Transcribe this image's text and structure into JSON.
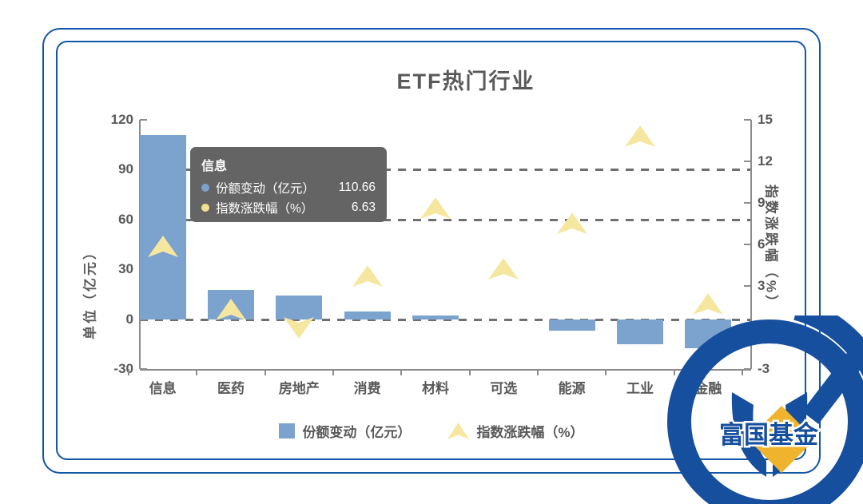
{
  "title": "ETF热门行业",
  "watermark": {
    "text": "富国基金"
  },
  "tooltip": {
    "title": "信息",
    "rows": [
      {
        "label": "份额变动（亿元）",
        "value": "110.66",
        "dot_color": "#7BA3CE"
      },
      {
        "label": "指数涨跌幅（%）",
        "value": "6.63",
        "dot_color": "#F2E092"
      }
    ]
  },
  "colors": {
    "card_border": "#1256A8",
    "bar": "#7BA3CE",
    "triangle": "#F6E7A0",
    "grid": "#6F6F6F",
    "axis_line": "#8C8C8C",
    "text": "#595959",
    "tooltip_bg": "#646464",
    "tooltip_text": "#FFFFFF",
    "logo_blue": "#164F9E",
    "logo_gold": "#F0B32E"
  },
  "chart_data": {
    "type": "combo-bar-scatter",
    "title": "ETF热门行业",
    "categories": [
      "信息",
      "医药",
      "房地产",
      "消费",
      "材料",
      "可选",
      "能源",
      "工业",
      "金融"
    ],
    "series": [
      {
        "name": "份额变动（亿元）",
        "type": "bar",
        "axis": "left",
        "color": "#7BA3CE",
        "values": [
          110.66,
          17.5,
          14,
          4.5,
          2,
          0,
          -7,
          -15,
          -17.5
        ]
      },
      {
        "name": "指数涨跌幅（%）",
        "type": "triangle",
        "axis": "right",
        "color": "#F6E7A0",
        "values": [
          6.63,
          2.1,
          -0.8,
          4.5,
          9.4,
          5.0,
          8.3,
          14.6,
          2.5
        ]
      }
    ],
    "left_axis": {
      "title": "单位（亿元）",
      "ticks": [
        120,
        90,
        60,
        30,
        0,
        -30
      ],
      "range": [
        -30,
        120
      ]
    },
    "right_axis": {
      "title": "指数涨跌幅（%）",
      "ticks": [
        15,
        12,
        9,
        6,
        3,
        0,
        -3
      ],
      "range": [
        -3,
        15
      ]
    },
    "gridlines_left_values": [
      90,
      60,
      0
    ],
    "legend_position": "bottom",
    "grid": "dashed-partial"
  }
}
